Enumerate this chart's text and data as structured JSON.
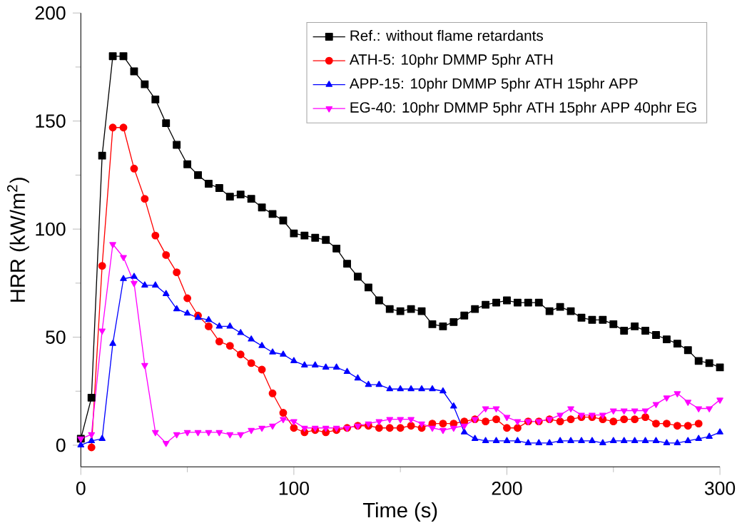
{
  "chart_data": {
    "type": "line",
    "xlabel": "Time (s)",
    "ylabel": "HRR (kW/m$^{2}$)",
    "x": [
      0,
      5,
      10,
      15,
      20,
      25,
      30,
      35,
      40,
      45,
      50,
      55,
      60,
      65,
      70,
      75,
      80,
      85,
      90,
      95,
      100,
      105,
      110,
      115,
      120,
      125,
      130,
      135,
      140,
      145,
      150,
      155,
      160,
      165,
      170,
      175,
      180,
      185,
      190,
      195,
      200,
      205,
      210,
      215,
      220,
      225,
      230,
      235,
      240,
      245,
      250,
      255,
      260,
      265,
      270,
      275,
      280,
      285,
      290,
      295,
      300
    ],
    "xlim": [
      0,
      300
    ],
    "xticks": [
      0,
      100,
      200,
      300
    ],
    "ylim": [
      -10,
      200
    ],
    "yticks": [
      0,
      50,
      100,
      150,
      200
    ],
    "legend": "top right",
    "grid": false,
    "line_style": "solid",
    "series": [
      {
        "name": "Ref.: without flame retardants",
        "color": "#000000",
        "marker": "square",
        "values": [
          3,
          22,
          134,
          180,
          180,
          173,
          167,
          160,
          149,
          139,
          130,
          125,
          121,
          119,
          115,
          116,
          114,
          110,
          107,
          104,
          98,
          97,
          96,
          95,
          91,
          84,
          78,
          73,
          67,
          63,
          62,
          63,
          62,
          56,
          55,
          57,
          60,
          63,
          65,
          66,
          67,
          66,
          66,
          66,
          62,
          64,
          62,
          59,
          58,
          58,
          56,
          53,
          55,
          53,
          51,
          49,
          47,
          44,
          39,
          38,
          36
        ]
      },
      {
        "name": "ATH-5: 10phr DMMP 5phr ATH",
        "color": "#ff0000",
        "marker": "circle",
        "values": [
          null,
          -1,
          83,
          147,
          147,
          128,
          114,
          97,
          88,
          80,
          68,
          60,
          55,
          48,
          46,
          42,
          38,
          35,
          24,
          15,
          8,
          6,
          7,
          6,
          7,
          8,
          9,
          9,
          8,
          8,
          8,
          9,
          8,
          10,
          10,
          10,
          11,
          12,
          11,
          12,
          8,
          8,
          11,
          11,
          12,
          11,
          12,
          13,
          13,
          12,
          11,
          12,
          12,
          13,
          10,
          10,
          9,
          9,
          10,
          null,
          null
        ]
      },
      {
        "name": "APP-15: 10phr DMMP 5phr ATH 15phr APP",
        "color": "#0000ff",
        "marker": "triangle",
        "values": [
          0,
          2,
          3,
          47,
          77,
          78,
          74,
          74,
          70,
          63,
          61,
          59,
          58,
          55,
          55,
          52,
          49,
          46,
          43,
          42,
          39,
          37,
          37,
          36,
          36,
          34,
          31,
          28,
          28,
          26,
          26,
          26,
          26,
          26,
          25,
          18,
          6,
          3,
          2,
          2,
          2,
          2,
          1,
          1,
          1,
          2,
          2,
          2,
          2,
          1,
          2,
          2,
          2,
          2,
          2,
          1,
          1,
          2,
          3,
          4,
          6
        ]
      },
      {
        "name": "EG-40: 10phr DMMP 5phr ATH 15phr APP 40phr EG",
        "color": "#ff00ff",
        "marker": "triangle_down",
        "values": [
          3,
          5,
          53,
          93,
          87,
          75,
          37,
          6,
          1,
          5,
          6,
          6,
          6,
          6,
          5,
          5,
          7,
          8,
          9,
          12,
          11,
          8,
          8,
          8,
          8,
          8,
          9,
          10,
          11,
          12,
          12,
          12,
          10,
          8,
          7,
          8,
          9,
          12,
          17,
          17,
          13,
          11,
          11,
          11,
          12,
          14,
          17,
          14,
          14,
          14,
          16,
          16,
          16,
          16,
          19,
          22,
          24,
          20,
          17,
          17,
          21
        ]
      }
    ]
  }
}
